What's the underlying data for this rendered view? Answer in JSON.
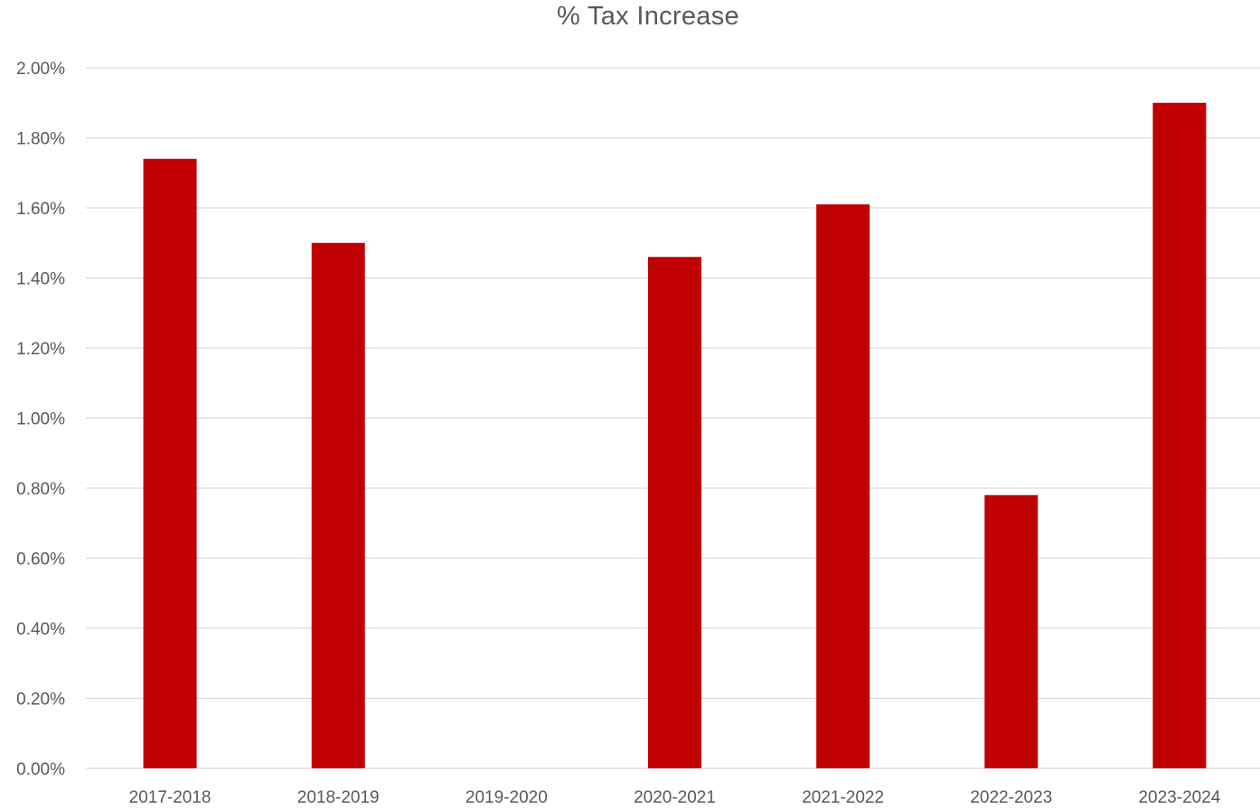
{
  "chart_data": {
    "type": "bar",
    "title": "% Tax Increase",
    "xlabel": "",
    "ylabel": "",
    "categories": [
      "2017-2018",
      "2018-2019",
      "2019-2020",
      "2020-2021",
      "2021-2022",
      "2022-2023",
      "2023-2024"
    ],
    "values": [
      1.74,
      1.5,
      0.0,
      1.46,
      1.61,
      0.78,
      1.9
    ],
    "value_unit": "%",
    "ylim": [
      0,
      2.0
    ],
    "yticks": [
      0.0,
      0.2,
      0.4,
      0.6,
      0.8,
      1.0,
      1.2,
      1.4,
      1.6,
      1.8,
      2.0
    ],
    "ytick_labels": [
      "0.00%",
      "0.20%",
      "0.40%",
      "0.60%",
      "0.80%",
      "1.00%",
      "1.20%",
      "1.40%",
      "1.60%",
      "1.80%",
      "2.00%"
    ],
    "grid": true,
    "legend": "none",
    "bar_color": "#c00000",
    "grid_color": "#d9d9d9",
    "text_color": "#595959"
  }
}
